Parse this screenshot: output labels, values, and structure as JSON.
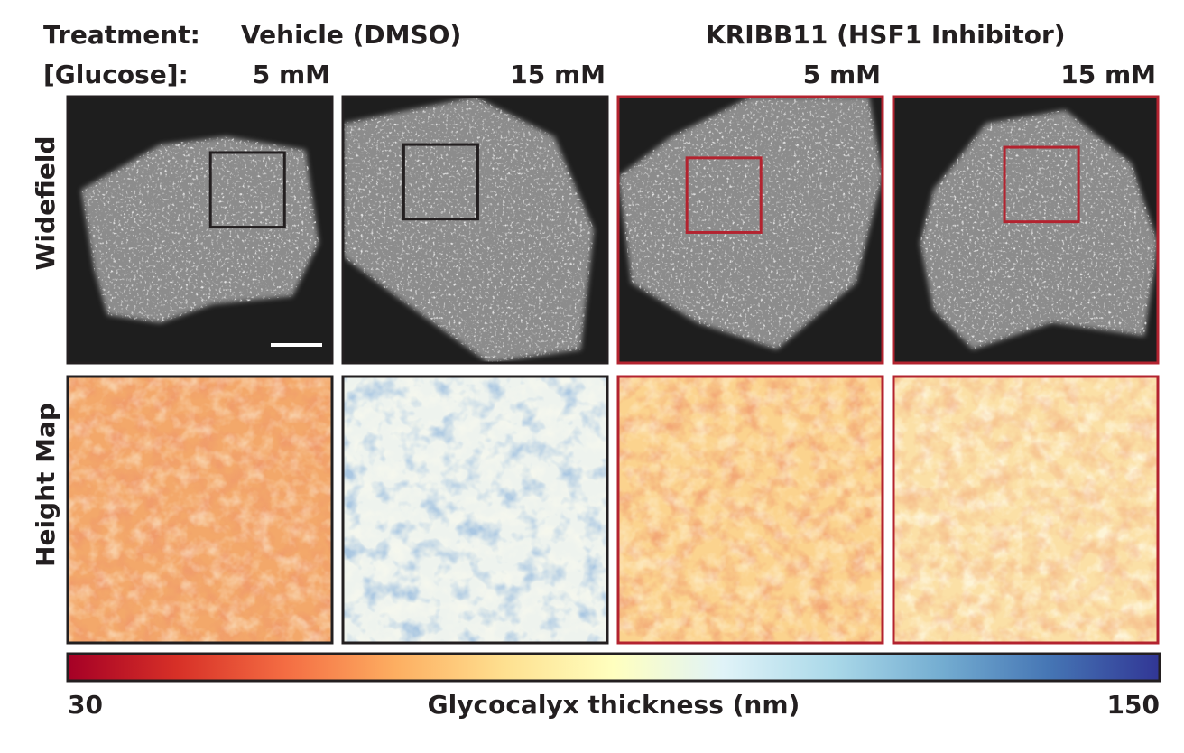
{
  "header": {
    "treatment_label": "Treatment:",
    "glucose_label": "[Glucose]:",
    "treatments": [
      {
        "label": "Vehicle (DMSO)",
        "color": "#231f20"
      },
      {
        "label": "KRIBB11 (HSF1 Inhibitor)",
        "color": "#b3232f"
      }
    ],
    "glucose": [
      "5 mM",
      "15 mM",
      "5 mM",
      "15 mM"
    ]
  },
  "rows": [
    "Widefield",
    "Height Map"
  ],
  "colorbar": {
    "min": 30,
    "max": 150,
    "label": "Glycocalyx thickness (nm)",
    "colors": [
      "#a50026",
      "#d73027",
      "#f46d43",
      "#fdae61",
      "#fee090",
      "#ffffbf",
      "#e0f3f8",
      "#abd9e9",
      "#74add1",
      "#4575b4",
      "#313695"
    ]
  }
}
